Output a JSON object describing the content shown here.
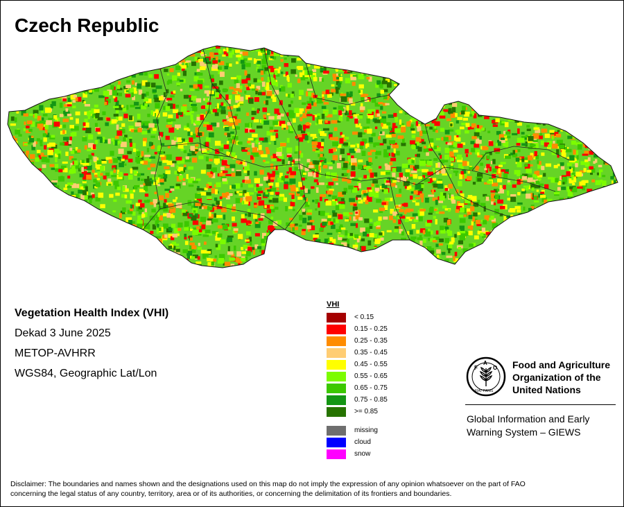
{
  "map": {
    "title": "Czech Republic",
    "info": {
      "index_name": "Vegetation Health Index (VHI)",
      "period": "Dekad 3 June 2025",
      "sensor": "METOP-AVHRR",
      "projection": "WGS84, Geographic Lat/Lon"
    },
    "legend": {
      "title": "VHI",
      "classes": [
        {
          "label": "< 0.15",
          "color": "#a50000"
        },
        {
          "label": "0.15 - 0.25",
          "color": "#ff0000"
        },
        {
          "label": "0.25 - 0.35",
          "color": "#ff8c00"
        },
        {
          "label": "0.35 - 0.45",
          "color": "#ffcd73"
        },
        {
          "label": "0.45 - 0.55",
          "color": "#ffff00"
        },
        {
          "label": "0.55 - 0.65",
          "color": "#7cfc00"
        },
        {
          "label": "0.65 - 0.75",
          "color": "#3cc800"
        },
        {
          "label": "0.75 - 0.85",
          "color": "#149614"
        },
        {
          "label": ">= 0.85",
          "color": "#267300"
        }
      ],
      "special": [
        {
          "label": "missing",
          "color": "#6e6e6e"
        },
        {
          "label": "cloud",
          "color": "#0000ff"
        },
        {
          "label": "snow",
          "color": "#ff00ff"
        }
      ]
    }
  },
  "fao": {
    "logo_text": "FAO",
    "logo_motto": "FIAT PANIS",
    "name_lines": [
      "Food and Agriculture",
      "Organization of the",
      "United Nations"
    ],
    "giews_lines": [
      "Global Information and Early",
      "Warning System – GIEWS"
    ]
  },
  "disclaimer_lines": [
    "Disclaimer: The boundaries and names shown and the designations used on this map do not imply the expression of any opinion whatsoever on the part of FAO",
    "concerning the legal status of any country, territory, area or of its authorities, or concerning the delimitation of its frontiers and boundaries."
  ]
}
